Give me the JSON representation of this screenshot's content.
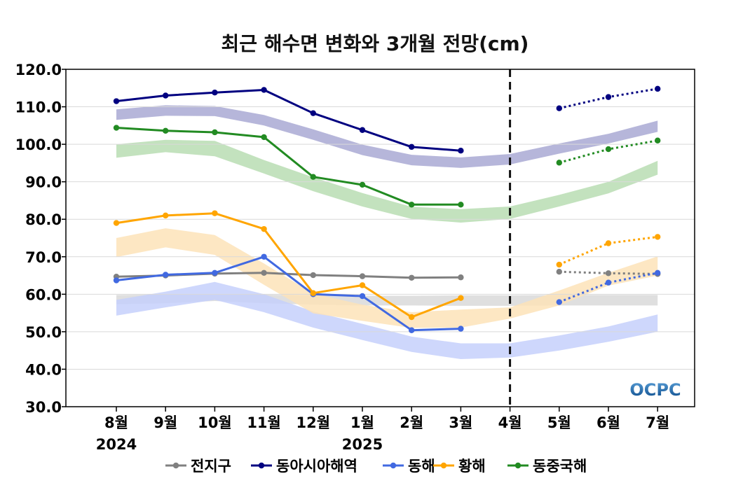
{
  "chart_data": {
    "type": "line",
    "title": "최근 해수면 변화와 3개월 전망(cm)",
    "x_labels": [
      "8월",
      "9월",
      "10월",
      "11월",
      "12월",
      "1월",
      "2월",
      "3월",
      "4월",
      "5월",
      "6월",
      "7월"
    ],
    "year_labels": [
      {
        "index": 0,
        "label": "2024"
      },
      {
        "index": 5,
        "label": "2025"
      }
    ],
    "y_ticks": [
      "30.0",
      "40.0",
      "50.0",
      "60.0",
      "70.0",
      "80.0",
      "90.0",
      "100.0",
      "110.0",
      "120.0"
    ],
    "ylim": [
      30,
      120
    ],
    "grid": "horizontal",
    "divider_at": "4월",
    "legend_position": "bottom",
    "series": [
      {
        "name": "전지구",
        "color": "#808080",
        "band_color": "#d9d9d9",
        "observed": [
          64.7,
          65.0,
          65.5,
          65.7,
          65.1,
          64.8,
          64.4,
          64.5
        ],
        "forecast": [
          66.0,
          65.6,
          65.4
        ],
        "band_low": [
          57.3,
          57.6,
          58.2,
          57.6,
          57.2,
          57.0,
          57.0,
          56.9,
          56.9,
          57.0,
          57.0,
          57.0
        ],
        "band_high": [
          59.8,
          59.9,
          59.9,
          59.9,
          59.7,
          59.6,
          59.6,
          59.7,
          59.7,
          59.8,
          59.8,
          59.8
        ]
      },
      {
        "name": "동아시아해역",
        "color": "#000080",
        "band_color": "#a9a9d4",
        "observed": [
          111.5,
          113.0,
          113.8,
          114.5,
          108.3,
          103.8,
          99.3,
          98.3
        ],
        "forecast": [
          109.6,
          112.6,
          114.8
        ],
        "band_low": [
          106.5,
          107.6,
          107.5,
          105.0,
          101.2,
          97.1,
          94.4,
          93.7,
          94.6,
          97.5,
          100.2,
          103.3
        ],
        "band_high": [
          109.3,
          110.4,
          110.2,
          107.8,
          104.0,
          99.9,
          97.2,
          96.5,
          97.4,
          100.2,
          102.8,
          106.3
        ]
      },
      {
        "name": "동해",
        "color": "#4169e1",
        "band_color": "#c6d0fb",
        "observed": [
          63.7,
          65.2,
          65.7,
          70.0,
          60.0,
          59.5,
          50.4,
          50.8
        ],
        "forecast": [
          57.9,
          63.1,
          65.7
        ],
        "band_low": [
          54.3,
          56.5,
          58.5,
          55.2,
          51.1,
          47.8,
          44.6,
          42.7,
          43.1,
          45.0,
          47.3,
          50.0
        ],
        "band_high": [
          58.5,
          60.7,
          63.3,
          60.0,
          55.4,
          52.1,
          48.7,
          46.9,
          46.9,
          49.0,
          51.4,
          54.6
        ]
      },
      {
        "name": "황해",
        "color": "#ffa500",
        "band_color": "#fde3b8",
        "observed": [
          79.0,
          81.0,
          81.6,
          77.4,
          60.3,
          62.4,
          53.9,
          59.0
        ],
        "forecast": [
          67.9,
          73.6,
          75.3
        ],
        "band_low": [
          69.9,
          72.5,
          70.5,
          62.5,
          54.9,
          52.9,
          51.0,
          51.1,
          53.5,
          57.0,
          62.3,
          65.0
        ],
        "band_high": [
          75.0,
          77.6,
          75.8,
          68.2,
          60.2,
          57.2,
          55.2,
          55.9,
          56.5,
          61.0,
          65.7,
          70.1
        ]
      },
      {
        "name": "동중국해",
        "color": "#228b22",
        "band_color": "#b9ddb3",
        "observed": [
          104.4,
          103.6,
          103.2,
          101.9,
          91.3,
          89.2,
          83.9,
          83.9
        ],
        "forecast": [
          95.1,
          98.7,
          101.0
        ],
        "band_low": [
          96.4,
          97.9,
          96.8,
          92.2,
          87.5,
          83.4,
          80.1,
          79.1,
          80.1,
          83.4,
          86.9,
          91.9
        ],
        "band_high": [
          100.0,
          101.2,
          100.9,
          95.8,
          91.2,
          87.0,
          83.3,
          82.7,
          83.4,
          86.5,
          90.0,
          95.6
        ]
      }
    ]
  },
  "logo": {
    "text": "OCPC"
  }
}
